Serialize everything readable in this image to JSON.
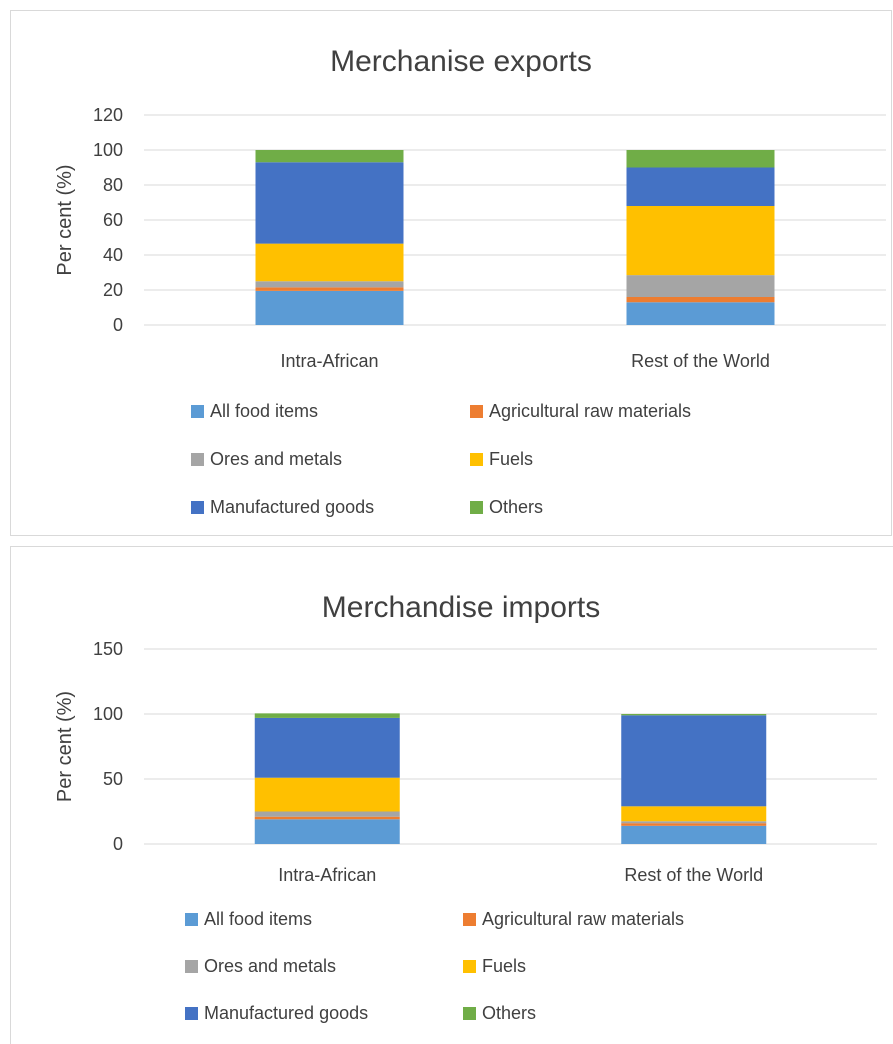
{
  "chart_data": [
    {
      "type": "bar",
      "stacked": true,
      "title": "Merchanise exports",
      "xlabel": "",
      "ylabel": "Per cent (%)",
      "ylim": [
        0,
        120
      ],
      "yticks": [
        0,
        20,
        40,
        60,
        80,
        100,
        120
      ],
      "grid": true,
      "legend_position": "bottom",
      "categories": [
        "Intra-African",
        "Rest of the World"
      ],
      "series": [
        {
          "name": "All food items",
          "color": "#5b9bd5",
          "values": [
            19.5,
            13
          ]
        },
        {
          "name": "Agricultural raw materials",
          "color": "#ed7d31",
          "values": [
            2,
            3
          ]
        },
        {
          "name": "Ores and metals",
          "color": "#a5a5a5",
          "values": [
            3.5,
            12.5
          ]
        },
        {
          "name": "Fuels",
          "color": "#ffc000",
          "values": [
            21.5,
            39.5
          ]
        },
        {
          "name": "Manufactured goods",
          "color": "#4472c4",
          "values": [
            46.5,
            22
          ]
        },
        {
          "name": "Others",
          "color": "#70ad47",
          "values": [
            7,
            10
          ]
        }
      ]
    },
    {
      "type": "bar",
      "stacked": true,
      "title": "Merchandise imports",
      "xlabel": "",
      "ylabel": "Per cent (%)",
      "ylim": [
        0,
        150
      ],
      "yticks": [
        0,
        50,
        100,
        150
      ],
      "grid": true,
      "legend_position": "bottom",
      "categories": [
        "Intra-African",
        "Rest of the World"
      ],
      "series": [
        {
          "name": "All food items",
          "color": "#5b9bd5",
          "values": [
            19,
            14
          ]
        },
        {
          "name": "Agricultural raw materials",
          "color": "#ed7d31",
          "values": [
            2,
            2
          ]
        },
        {
          "name": "Ores and metals",
          "color": "#a5a5a5",
          "values": [
            4,
            1.5
          ]
        },
        {
          "name": "Fuels",
          "color": "#ffc000",
          "values": [
            26,
            11.5
          ]
        },
        {
          "name": "Manufactured goods",
          "color": "#4472c4",
          "values": [
            46,
            70
          ]
        },
        {
          "name": "Others",
          "color": "#70ad47",
          "values": [
            3.5,
            1
          ]
        }
      ]
    }
  ]
}
